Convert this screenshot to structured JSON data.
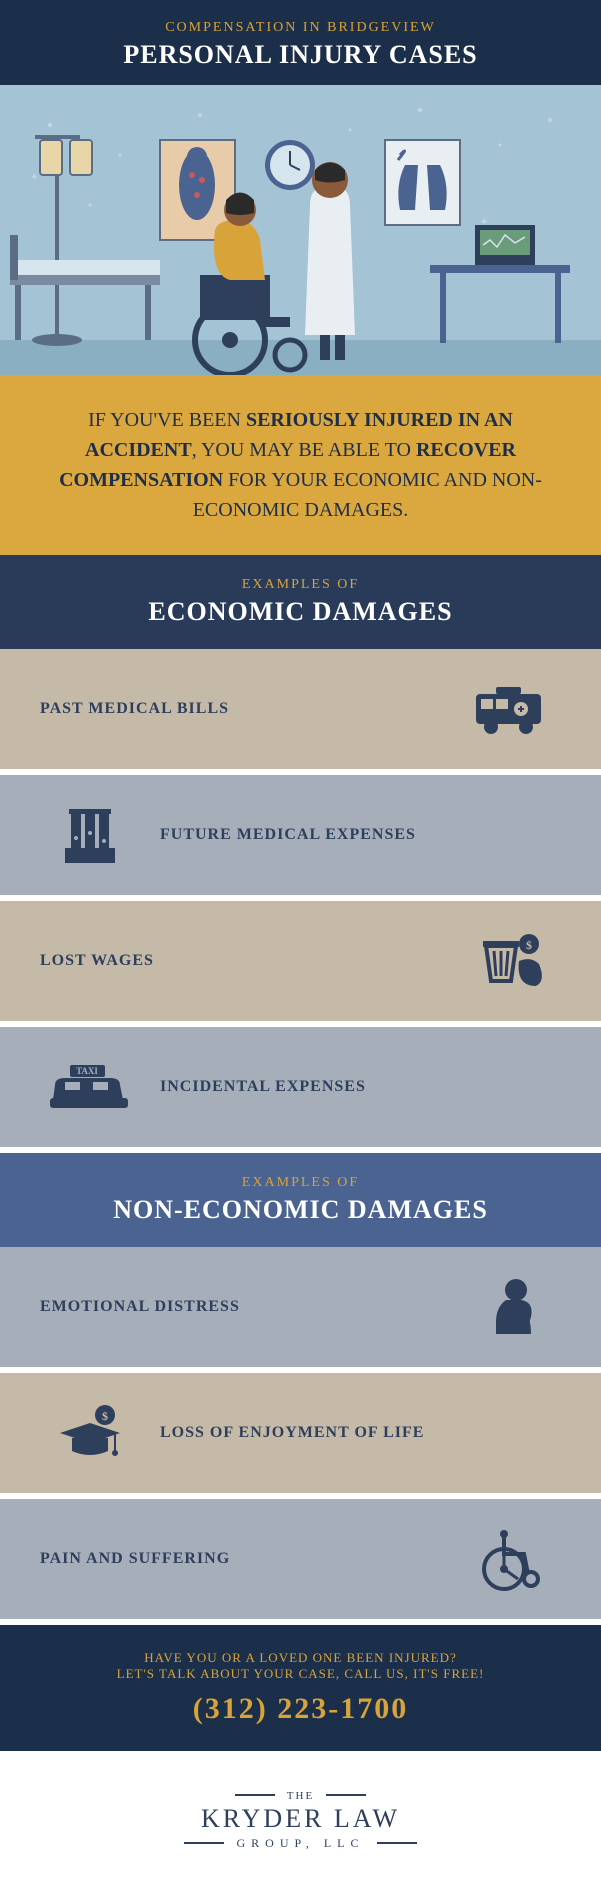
{
  "colors": {
    "dark_navy": "#1c2f4a",
    "navy": "#2a3b5a",
    "gold": "#d8a339",
    "gold_bg": "#dba73f",
    "cream": "#c5b9a8",
    "blue_gray": "#a5aeb9",
    "mid_blue": "#4a6390",
    "white": "#ffffff",
    "light_blue": "#a4c4d6",
    "icon_navy": "#2e3f5c"
  },
  "header": {
    "subtitle": "COMPENSATION IN BRIDGEVIEW",
    "title": "PERSONAL INJURY CASES",
    "subtitle_color": "#d8a339",
    "title_color": "#ffffff",
    "bg_color": "#1c2f4a",
    "subtitle_size": 14,
    "title_size": 26
  },
  "hero": {
    "bg_color": "#a4c4d6"
  },
  "intro": {
    "text_pre": "IF YOU'VE BEEN ",
    "bold1": "SERIOUSLY INJURED IN AN ACCIDENT",
    "text_mid": ", YOU MAY BE ABLE TO ",
    "bold2": "RECOVER COMPENSATION",
    "text_post": " FOR YOUR ECONOMIC AND NON-ECONOMIC DAMAGES.",
    "bg_color": "#dba73f",
    "text_color": "#1c2f4a",
    "font_size": 20
  },
  "section1": {
    "sub": "EXAMPLES OF",
    "title": "ECONOMIC DAMAGES",
    "bg_color": "#2a3b5a",
    "sub_color": "#d8a339",
    "title_color": "#ffffff",
    "sub_size": 14,
    "title_size": 26,
    "items": [
      {
        "label": "PAST MEDICAL BILLS",
        "layout": "left",
        "bg": "#c5b9a8",
        "text_color": "#2e3f5c",
        "icon": "ambulance"
      },
      {
        "label": "FUTURE MEDICAL EXPENSES",
        "layout": "right",
        "bg": "#a5aeb9",
        "text_color": "#2e3f5c",
        "icon": "testtubes"
      },
      {
        "label": "LOST WAGES",
        "layout": "left",
        "bg": "#c5b9a8",
        "text_color": "#2e3f5c",
        "icon": "trash-money"
      },
      {
        "label": "INCIDENTAL EXPENSES",
        "layout": "right",
        "bg": "#a5aeb9",
        "text_color": "#2e3f5c",
        "icon": "taxi"
      }
    ]
  },
  "section2": {
    "sub": "EXAMPLES OF",
    "title": "NON-ECONOMIC DAMAGES",
    "bg_color": "#4a6390",
    "sub_color": "#d8a339",
    "title_color": "#ffffff",
    "sub_size": 14,
    "title_size": 26,
    "items": [
      {
        "label": "EMOTIONAL DISTRESS",
        "layout": "left",
        "bg": "#a5aeb9",
        "text_color": "#2e3f5c",
        "icon": "sad-person"
      },
      {
        "label": "LOSS OF ENJOYMENT OF LIFE",
        "layout": "right",
        "bg": "#c5b9a8",
        "text_color": "#2e3f5c",
        "icon": "gradcap"
      },
      {
        "label": "PAIN AND SUFFERING",
        "layout": "left",
        "bg": "#a5aeb9",
        "text_color": "#2e3f5c",
        "icon": "wheelchair"
      }
    ]
  },
  "cta": {
    "line1": "HAVE YOU OR A LOVED ONE BEEN INJURED?",
    "line2": "LET'S TALK ABOUT YOUR CASE, CALL US, IT'S FREE!",
    "phone": "(312) 223-1700",
    "bg_color": "#1c2f4a",
    "line_color": "#d8a339",
    "phone_color": "#d8a339",
    "line_size": 13,
    "phone_size": 30
  },
  "logo": {
    "top": "THE",
    "name": "KRYDER LAW",
    "sub": "GROUP, LLC",
    "color": "#2e3f5c",
    "top_size": 11,
    "name_size": 26,
    "sub_size": 12
  },
  "item_font_size": 16
}
